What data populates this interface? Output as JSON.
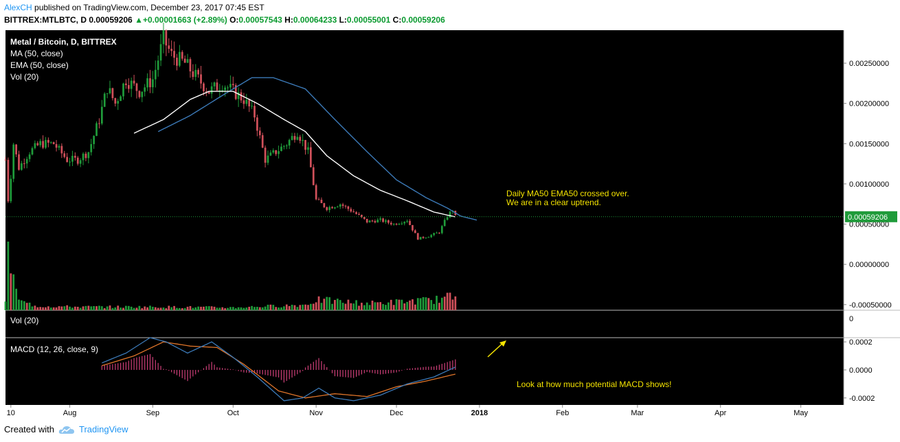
{
  "header": {
    "author": "AlexCH",
    "published": "published on TradingView.com, December 23, 2017 07:45 EST",
    "symbol": "BITTREX:MTLBTC, D",
    "last": "0.00059206",
    "change": "+0.00001663 (+2.89%)",
    "o_label": "O:",
    "o": "0.00057543",
    "h_label": "H:",
    "h": "0.00064233",
    "l_label": "L:",
    "l": "0.00055001",
    "c_label": "C:",
    "c": "0.00059206"
  },
  "legend": {
    "title": "Metal / Bitcoin, D, BITTREX",
    "ma": "MA (50, close)",
    "ema": "EMA (50, close)",
    "vol": "Vol (20)"
  },
  "vol_pane": {
    "label": "Vol (20)",
    "tick": "0"
  },
  "macd_pane": {
    "label": "MACD (12, 26, close, 9)"
  },
  "annotations": {
    "cross_line1": "Daily MA50 EMA50 crossed over.",
    "cross_line2": "We are in a clear uptrend.",
    "macd_note": "Look at how much potential MACD shows!"
  },
  "footer": {
    "created": "Created with",
    "brand": "TradingView"
  },
  "colors": {
    "up": "#1f9b3a",
    "down": "#d0505a",
    "ma": "#ffffff",
    "ema": "#3c7ab8",
    "macd": "#3c7ab8",
    "signal": "#e0752a",
    "hist": "#d0407a",
    "annot": "#f5e400",
    "price_label_bg": "#1f9b3a"
  },
  "chart_data": [
    {
      "type": "candlestick",
      "title": "Metal / Bitcoin, D, BITTREX",
      "y_ticks": [
        "0.00250000",
        "0.00200000",
        "0.00150000",
        "0.00100000",
        "0.00050000",
        "0.00000000",
        "-0.00050000"
      ],
      "ylim": [
        -0.00057,
        0.00291
      ],
      "last_price": "0.00059206",
      "x_ticks": [
        "10",
        "Aug",
        "Sep",
        "Oct",
        "Nov",
        "Dec",
        "2018",
        "Feb",
        "Mar",
        "Apr",
        "May"
      ],
      "x_tick_dates": [
        "2017-07-10",
        "2017-08-01",
        "2017-09-01",
        "2017-10-01",
        "2017-11-01",
        "2017-12-01",
        "2018-01-01",
        "2018-02-01",
        "2018-03-01",
        "2018-04-01",
        "2018-05-01"
      ],
      "x_range": [
        "2017-07-08",
        "2018-05-17"
      ],
      "close_anchors": [
        [
          "2017-07-08",
          0.0013
        ],
        [
          "2017-07-09",
          0.0008
        ],
        [
          "2017-07-10",
          0.0011
        ],
        [
          "2017-07-11",
          0.0015
        ],
        [
          "2017-07-13",
          0.0012
        ],
        [
          "2017-07-17",
          0.0014
        ],
        [
          "2017-07-21",
          0.0015
        ],
        [
          "2017-07-26",
          0.0015
        ],
        [
          "2017-07-31",
          0.0013
        ],
        [
          "2017-08-04",
          0.0013
        ],
        [
          "2017-08-08",
          0.0014
        ],
        [
          "2017-08-12",
          0.0018
        ],
        [
          "2017-08-15",
          0.0022
        ],
        [
          "2017-08-18",
          0.002
        ],
        [
          "2017-08-22",
          0.0023
        ],
        [
          "2017-08-27",
          0.00215
        ],
        [
          "2017-09-01",
          0.0023
        ],
        [
          "2017-09-05",
          0.0028
        ],
        [
          "2017-09-08",
          0.0026
        ],
        [
          "2017-09-13",
          0.0025
        ],
        [
          "2017-09-18",
          0.0023
        ],
        [
          "2017-09-22",
          0.00215
        ],
        [
          "2017-09-27",
          0.00225
        ],
        [
          "2017-10-01",
          0.00215
        ],
        [
          "2017-10-05",
          0.00205
        ],
        [
          "2017-10-09",
          0.00185
        ],
        [
          "2017-10-13",
          0.0013
        ],
        [
          "2017-10-17",
          0.0014
        ],
        [
          "2017-10-21",
          0.0015
        ],
        [
          "2017-10-25",
          0.00165
        ],
        [
          "2017-10-29",
          0.0014
        ],
        [
          "2017-11-01",
          0.0008
        ],
        [
          "2017-11-05",
          0.0007
        ],
        [
          "2017-11-10",
          0.00075
        ],
        [
          "2017-11-15",
          0.00065
        ],
        [
          "2017-11-20",
          0.00053
        ],
        [
          "2017-11-25",
          0.00055
        ],
        [
          "2017-11-30",
          0.0005
        ],
        [
          "2017-12-05",
          0.00055
        ],
        [
          "2017-12-09",
          0.00032
        ],
        [
          "2017-12-13",
          0.00035
        ],
        [
          "2017-12-17",
          0.0004
        ],
        [
          "2017-12-20",
          0.0006
        ],
        [
          "2017-12-22",
          0.00068
        ],
        [
          "2017-12-23",
          0.00059206
        ]
      ],
      "ma50_anchors": [
        [
          "2017-08-25",
          0.00163
        ],
        [
          "2017-09-05",
          0.0018
        ],
        [
          "2017-09-15",
          0.00205
        ],
        [
          "2017-09-22",
          0.00215
        ],
        [
          "2017-10-01",
          0.00215
        ],
        [
          "2017-10-10",
          0.002
        ],
        [
          "2017-10-20",
          0.0018
        ],
        [
          "2017-10-28",
          0.00165
        ],
        [
          "2017-11-05",
          0.00135
        ],
        [
          "2017-11-15",
          0.0011
        ],
        [
          "2017-11-25",
          0.00092
        ],
        [
          "2017-12-05",
          0.00079
        ],
        [
          "2017-12-15",
          0.00065
        ],
        [
          "2017-12-23",
          0.00059
        ]
      ],
      "ema50_anchors": [
        [
          "2017-09-03",
          0.00165
        ],
        [
          "2017-09-15",
          0.00185
        ],
        [
          "2017-09-28",
          0.00212
        ],
        [
          "2017-10-08",
          0.00232
        ],
        [
          "2017-10-16",
          0.00232
        ],
        [
          "2017-10-28",
          0.00218
        ],
        [
          "2017-11-08",
          0.0018
        ],
        [
          "2017-11-20",
          0.0014
        ],
        [
          "2017-12-01",
          0.00105
        ],
        [
          "2017-12-12",
          0.00083
        ],
        [
          "2017-12-20",
          0.0007
        ],
        [
          "2017-12-25",
          0.0006
        ],
        [
          "2017-12-31",
          0.00055
        ]
      ]
    },
    {
      "type": "bar",
      "title": "Vol (20)",
      "note": "volume bars drawn in price pane bottom; spike on 2017-07-09",
      "volume_anchors": [
        [
          "2017-07-08",
          0.15
        ],
        [
          "2017-07-09",
          1.0
        ],
        [
          "2017-07-10",
          0.7
        ],
        [
          "2017-07-11",
          0.45
        ],
        [
          "2017-07-12",
          0.25
        ],
        [
          "2017-07-14",
          0.12
        ],
        [
          "2017-07-20",
          0.06
        ],
        [
          "2017-08-05",
          0.05
        ],
        [
          "2017-09-01",
          0.05
        ],
        [
          "2017-10-01",
          0.04
        ],
        [
          "2017-10-28",
          0.08
        ],
        [
          "2017-11-01",
          0.15
        ],
        [
          "2017-11-20",
          0.1
        ],
        [
          "2017-12-01",
          0.12
        ],
        [
          "2017-12-15",
          0.15
        ],
        [
          "2017-12-22",
          0.2
        ]
      ]
    },
    {
      "type": "line",
      "title": "MACD (12, 26, close, 9)",
      "y_ticks": [
        "0.0002",
        "0.0000",
        "-0.0002"
      ],
      "ylim": [
        -0.00025,
        0.00023
      ],
      "macd_anchors": [
        [
          "2017-08-13",
          5e-05
        ],
        [
          "2017-08-22",
          0.00012
        ],
        [
          "2017-08-31",
          0.00023
        ],
        [
          "2017-09-06",
          0.0002
        ],
        [
          "2017-09-14",
          0.00012
        ],
        [
          "2017-09-23",
          0.0002
        ],
        [
          "2017-10-01",
          9e-05
        ],
        [
          "2017-10-10",
          -5e-05
        ],
        [
          "2017-10-20",
          -0.00022
        ],
        [
          "2017-10-27",
          -0.0002
        ],
        [
          "2017-11-02",
          -0.00013
        ],
        [
          "2017-11-08",
          -0.0002
        ],
        [
          "2017-11-15",
          -0.00022
        ],
        [
          "2017-11-25",
          -0.00018
        ],
        [
          "2017-12-05",
          -0.0001
        ],
        [
          "2017-12-15",
          -5e-05
        ],
        [
          "2017-12-23",
          2e-05
        ]
      ],
      "signal_anchors": [
        [
          "2017-08-13",
          3e-05
        ],
        [
          "2017-08-25",
          0.0001
        ],
        [
          "2017-09-05",
          0.0002
        ],
        [
          "2017-09-15",
          0.00017
        ],
        [
          "2017-09-25",
          0.00016
        ],
        [
          "2017-10-05",
          4e-05
        ],
        [
          "2017-10-18",
          -0.00015
        ],
        [
          "2017-10-28",
          -0.0002
        ],
        [
          "2017-11-08",
          -0.00017
        ],
        [
          "2017-11-20",
          -0.00019
        ],
        [
          "2017-12-01",
          -0.00012
        ],
        [
          "2017-12-12",
          -8e-05
        ],
        [
          "2017-12-23",
          -3e-05
        ]
      ]
    }
  ]
}
